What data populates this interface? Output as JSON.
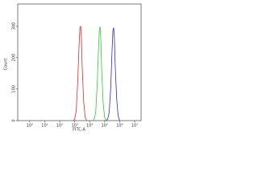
{
  "chart_data": {
    "type": "line",
    "x_label": "FITC-A",
    "y_label": "Count",
    "log_x": true,
    "xlim": [
      0.158,
      27000000
    ],
    "ylim": [
      0,
      370
    ],
    "xticks": [
      {
        "value": 1,
        "label": "10⁰"
      },
      {
        "value": 10,
        "label": "10¹"
      },
      {
        "value": 100,
        "label": "10²"
      },
      {
        "value": 1000,
        "label": "10³"
      },
      {
        "value": 10000,
        "label": "10⁴"
      },
      {
        "value": 100000,
        "label": "10⁵"
      },
      {
        "value": 1000000,
        "label": "10⁶"
      },
      {
        "value": 10000000,
        "label": "10⁷"
      }
    ],
    "yticks": [
      0,
      100,
      200,
      300
    ],
    "series": [
      {
        "color": "#e8262a",
        "x": [
          794,
          1000,
          1259,
          1585,
          1995,
          2239,
          2512,
          2818,
          3162,
          3981,
          5012,
          6310
        ],
        "values": [
          0,
          5,
          30,
          120,
          250,
          295,
          300,
          260,
          170,
          60,
          10,
          0
        ]
      },
      {
        "color": "#2ecc2e",
        "x": [
          15849,
          19953,
          25119,
          31623,
          39811,
          44668,
          50119,
          56234,
          63096,
          79433,
          100000,
          125893
        ],
        "values": [
          0,
          5,
          25,
          110,
          240,
          290,
          298,
          250,
          160,
          55,
          10,
          0
        ]
      },
      {
        "color": "#2a2ad8",
        "x": [
          125893,
          158489,
          199526,
          251189,
          316228,
          354813,
          398107,
          446684,
          501187,
          630957,
          794328,
          1000000
        ],
        "values": [
          0,
          5,
          25,
          100,
          230,
          285,
          295,
          260,
          180,
          70,
          15,
          0
        ]
      }
    ]
  }
}
